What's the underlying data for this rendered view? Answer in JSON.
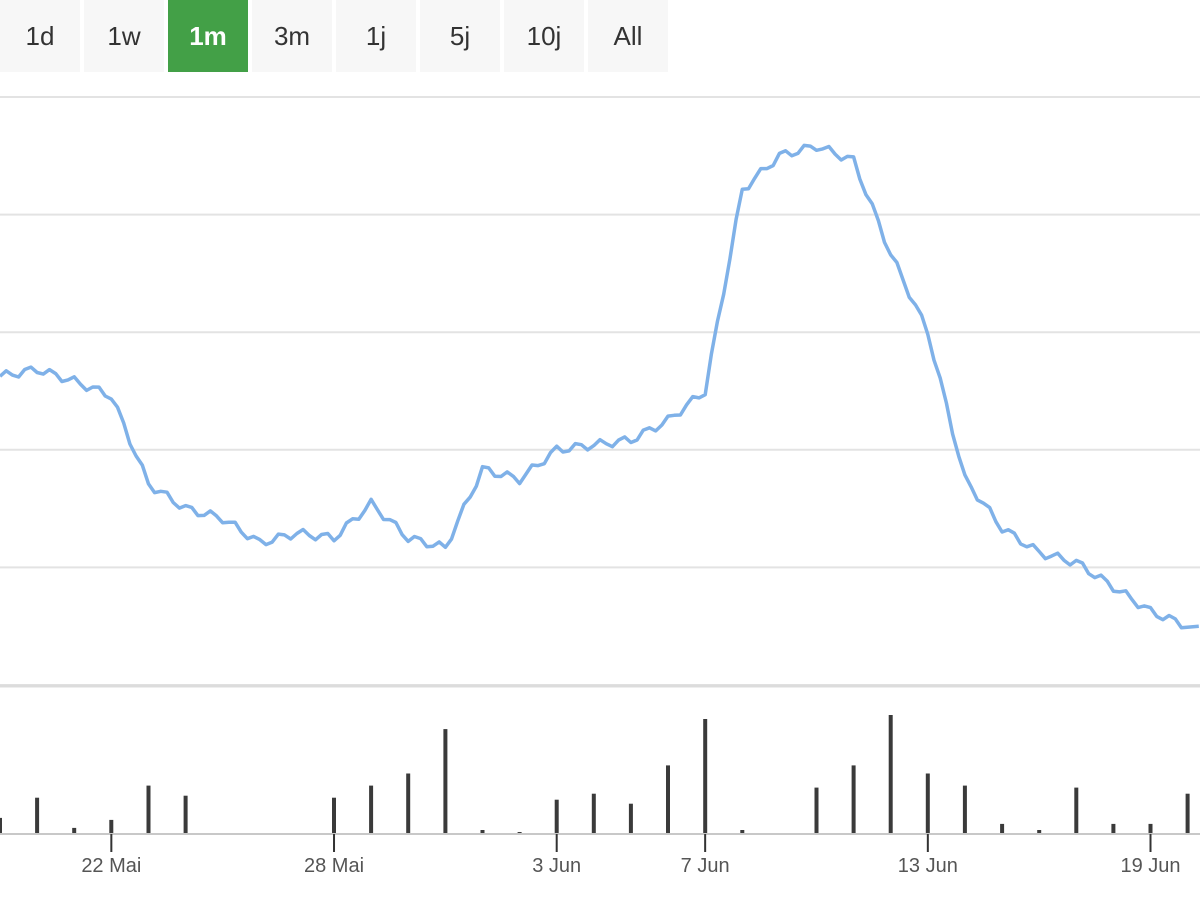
{
  "range_selector": {
    "buttons": [
      "1d",
      "1w",
      "1m",
      "3m",
      "1j",
      "5j",
      "10j",
      "All"
    ],
    "active": "1m"
  },
  "colors": {
    "line": "#7fb1e8",
    "volume": "#3a3a3a",
    "grid": "#e3e3e3",
    "active_button": "#43a047",
    "button_bg": "#f7f7f7"
  },
  "chart_data": [
    {
      "type": "line",
      "series": [
        {
          "x": [
            "2021-05-19",
            "2021-05-20",
            "2021-05-21",
            "2021-05-22",
            "2021-05-23",
            "2021-05-24",
            "2021-05-25",
            "2021-05-26",
            "2021-05-27",
            "2021-05-28",
            "2021-05-29",
            "2021-05-30",
            "2021-05-31",
            "2021-06-01",
            "2021-06-02",
            "2021-06-03",
            "2021-06-04",
            "2021-06-05",
            "2021-06-06",
            "2021-06-07",
            "2021-06-08",
            "2021-06-09",
            "2021-06-10",
            "2021-06-11",
            "2021-06-12",
            "2021-06-13",
            "2021-06-14",
            "2021-06-15",
            "2021-06-16",
            "2021-06-17",
            "2021-06-18",
            "2021-06-19",
            "2021-06-20"
          ],
          "values": [
            71.5,
            72.2,
            71.0,
            69.5,
            60.5,
            58.0,
            57.0,
            54.5,
            55.5,
            55.0,
            58.5,
            55.0,
            54.0,
            62.0,
            61.0,
            64.0,
            64.5,
            65.0,
            67.0,
            70.0,
            90.5,
            94.0,
            95.0,
            93.5,
            84.0,
            76.0,
            61.0,
            56.0,
            53.5,
            52.5,
            50.0,
            47.5,
            46.0
          ]
        }
      ],
      "ylim": [
        40,
        100
      ],
      "grid": true
    },
    {
      "type": "bar",
      "x": [
        "2021-05-19",
        "2021-05-20",
        "2021-05-21",
        "2021-05-22",
        "2021-05-23",
        "2021-05-24",
        "2021-05-25",
        "2021-05-26",
        "2021-05-27",
        "2021-05-28",
        "2021-05-29",
        "2021-05-30",
        "2021-05-31",
        "2021-06-01",
        "2021-06-02",
        "2021-06-03",
        "2021-06-04",
        "2021-06-05",
        "2021-06-06",
        "2021-06-07",
        "2021-06-08",
        "2021-06-09",
        "2021-06-10",
        "2021-06-11",
        "2021-06-12",
        "2021-06-13",
        "2021-06-14",
        "2021-06-15",
        "2021-06-16",
        "2021-06-17",
        "2021-06-18",
        "2021-06-19",
        "2021-06-20"
      ],
      "values": [
        8,
        18,
        3,
        7,
        24,
        19,
        0,
        0,
        0,
        18,
        24,
        30,
        52,
        2,
        1,
        17,
        20,
        15,
        34,
        57,
        2,
        0,
        23,
        34,
        59,
        30,
        24,
        5,
        2,
        23,
        5,
        5,
        20
      ],
      "xtick_labels": [
        "22 Mai",
        "28 Mai",
        "3 Jun",
        "7 Jun",
        "13 Jun",
        "19 Jun"
      ],
      "xtick_dates": [
        "2021-05-22",
        "2021-05-28",
        "2021-06-03",
        "2021-06-07",
        "2021-06-13",
        "2021-06-19"
      ]
    }
  ]
}
